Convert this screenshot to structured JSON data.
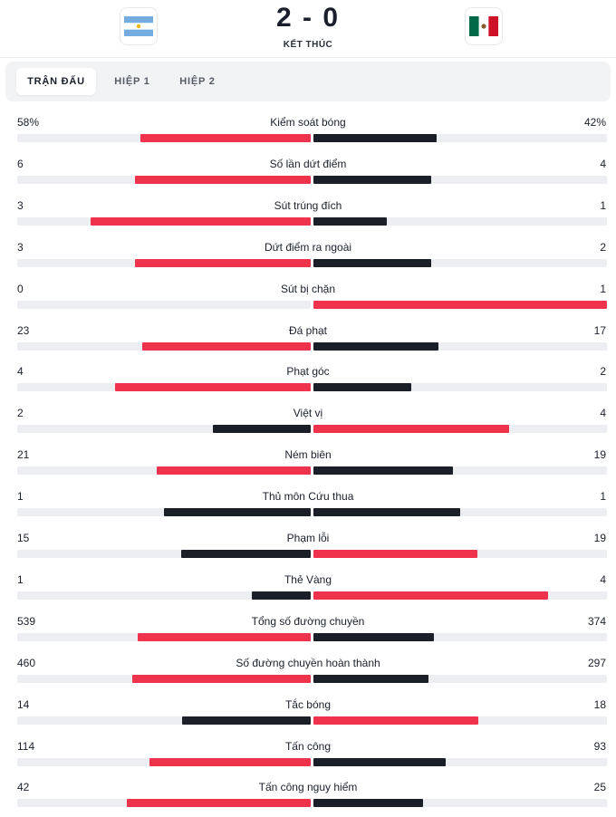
{
  "match": {
    "score": "2 - 0",
    "status": "KẾT THÚC",
    "home_flag": "argentina-flag-icon",
    "away_flag": "mexico-flag-icon"
  },
  "tabs": [
    {
      "label": "TRẬN ĐẤU",
      "active": true
    },
    {
      "label": "HIỆP 1",
      "active": false
    },
    {
      "label": "HIỆP 2",
      "active": false
    }
  ],
  "colors": {
    "lead": "#f0334d",
    "trail": "#1b2028",
    "track": "#edeef1"
  },
  "stats": [
    {
      "label": "Kiểm soát bóng",
      "home": "58%",
      "away": "42%",
      "home_val": 58,
      "away_val": 42
    },
    {
      "label": "Số lần dứt điểm",
      "home": "6",
      "away": "4",
      "home_val": 6,
      "away_val": 4
    },
    {
      "label": "Sút trúng đích",
      "home": "3",
      "away": "1",
      "home_val": 3,
      "away_val": 1
    },
    {
      "label": "Dứt điểm ra ngoài",
      "home": "3",
      "away": "2",
      "home_val": 3,
      "away_val": 2
    },
    {
      "label": "Sút bị chặn",
      "home": "0",
      "away": "1",
      "home_val": 0,
      "away_val": 1
    },
    {
      "label": "Đá phạt",
      "home": "23",
      "away": "17",
      "home_val": 23,
      "away_val": 17
    },
    {
      "label": "Phạt góc",
      "home": "4",
      "away": "2",
      "home_val": 4,
      "away_val": 2
    },
    {
      "label": "Việt vị",
      "home": "2",
      "away": "4",
      "home_val": 2,
      "away_val": 4
    },
    {
      "label": "Ném biên",
      "home": "21",
      "away": "19",
      "home_val": 21,
      "away_val": 19
    },
    {
      "label": "Thủ môn Cứu thua",
      "home": "1",
      "away": "1",
      "home_val": 1,
      "away_val": 1
    },
    {
      "label": "Phạm lỗi",
      "home": "15",
      "away": "19",
      "home_val": 15,
      "away_val": 19
    },
    {
      "label": "Thẻ Vàng",
      "home": "1",
      "away": "4",
      "home_val": 1,
      "away_val": 4
    },
    {
      "label": "Tổng số đường chuyền",
      "home": "539",
      "away": "374",
      "home_val": 539,
      "away_val": 374
    },
    {
      "label": "Số đường chuyền hoàn thành",
      "home": "460",
      "away": "297",
      "home_val": 460,
      "away_val": 297
    },
    {
      "label": "Tắc bóng",
      "home": "14",
      "away": "18",
      "home_val": 14,
      "away_val": 18
    },
    {
      "label": "Tấn công",
      "home": "114",
      "away": "93",
      "home_val": 114,
      "away_val": 93
    },
    {
      "label": "Tấn công nguy hiểm",
      "home": "42",
      "away": "25",
      "home_val": 42,
      "away_val": 25
    }
  ]
}
